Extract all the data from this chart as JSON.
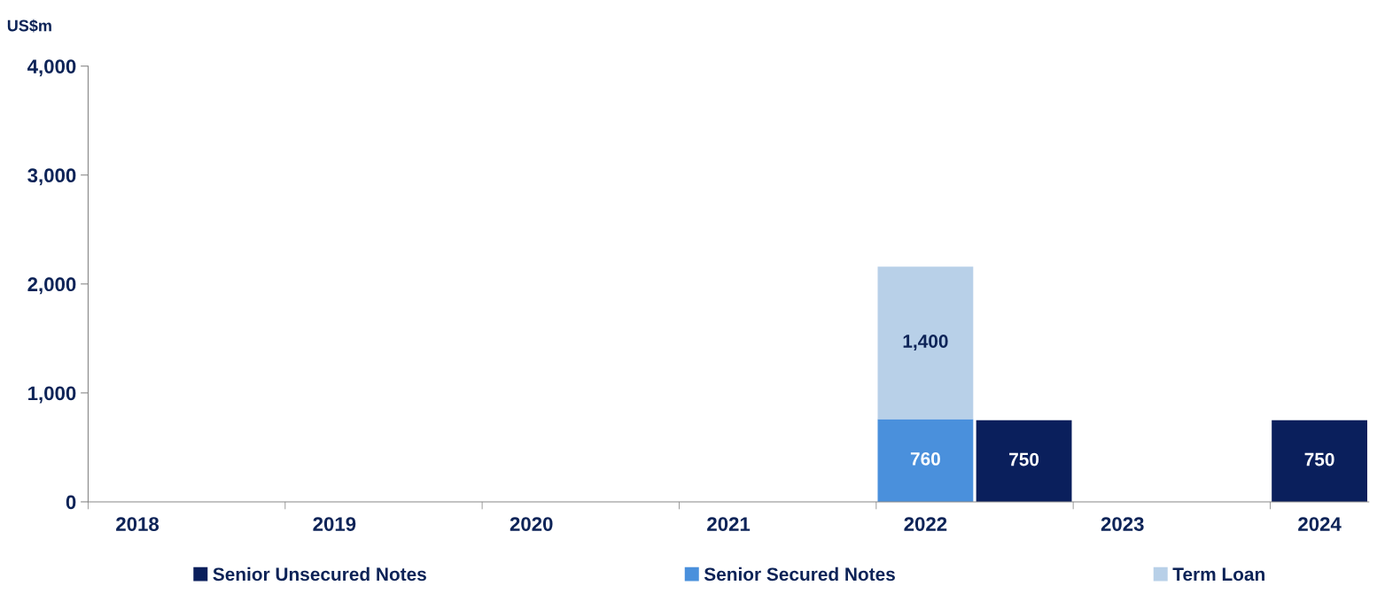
{
  "chart_data": {
    "type": "bar",
    "stacked": true,
    "ylabel": "US$m",
    "categories": [
      "2018",
      null,
      "2019",
      null,
      "2020",
      null,
      "2021",
      null,
      "2022",
      null,
      "2023",
      null,
      "2024"
    ],
    "series": [
      {
        "name": "Senior Unsecured Notes",
        "color": "#0a1f5c",
        "values": [
          null,
          null,
          null,
          null,
          null,
          null,
          null,
          null,
          null,
          750,
          null,
          null,
          750
        ],
        "value_labels": [
          null,
          null,
          null,
          null,
          null,
          null,
          null,
          null,
          null,
          "750",
          null,
          null,
          "750"
        ]
      },
      {
        "name": "Senior Secured Notes",
        "color": "#4a90dc",
        "values": [
          null,
          null,
          null,
          null,
          null,
          null,
          null,
          null,
          760,
          null,
          null,
          null,
          null
        ],
        "value_labels": [
          null,
          null,
          null,
          null,
          null,
          null,
          null,
          null,
          "760",
          null,
          null,
          null,
          null
        ]
      },
      {
        "name": "Term Loan",
        "color": "#b8d0e8",
        "values": [
          null,
          null,
          null,
          null,
          null,
          null,
          null,
          null,
          1400,
          null,
          null,
          null,
          null
        ],
        "value_labels": [
          null,
          null,
          null,
          null,
          null,
          null,
          null,
          null,
          "1,400",
          null,
          null,
          null,
          null
        ]
      }
    ],
    "ylim": [
      0,
      4000
    ],
    "yticks": [
      0,
      {
        "value": 1000,
        "label": "1,000"
      },
      {
        "value": 2000,
        "label": "2,000"
      },
      {
        "value": 3000,
        "label": "3,000"
      },
      {
        "value": 4000,
        "label": "4,000"
      }
    ],
    "legend": "bottom",
    "grid": false
  }
}
